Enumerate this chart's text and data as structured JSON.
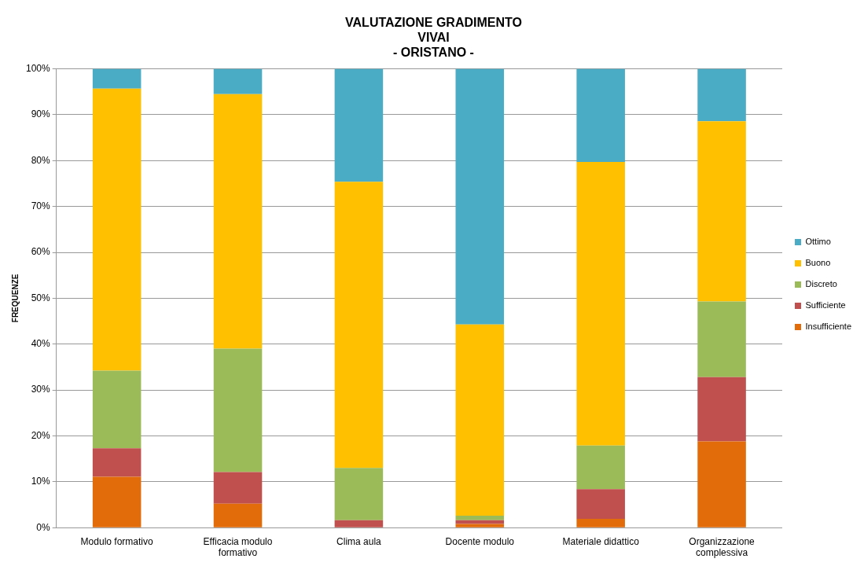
{
  "chart_data": {
    "type": "bar",
    "stacked": true,
    "title": "VALUTAZIONE GRADIMENTO\nVIVAI\n- ORISTANO -",
    "ylabel": "FREQUENZE",
    "categories": [
      "Modulo formativo",
      "Efficacia modulo formativo",
      "Clima aula",
      "Docente modulo",
      "Materiale didattico",
      "Organizzazione complessiva"
    ],
    "series": [
      {
        "name": "Insufficiente",
        "color": "#e36c0a",
        "values": [
          11.1,
          5.2,
          0,
          0.8,
          1.9,
          18.8
        ]
      },
      {
        "name": "Sufficiente",
        "color": "#c0504d",
        "values": [
          6.2,
          6.9,
          1.6,
          0.8,
          6.5,
          14.0
        ]
      },
      {
        "name": "Discreto",
        "color": "#9bbb59",
        "values": [
          16.9,
          26.9,
          11.4,
          1.0,
          9.5,
          16.5
        ]
      },
      {
        "name": "Buono",
        "color": "#ffc000",
        "values": [
          61.5,
          55.5,
          62.4,
          41.7,
          61.8,
          39.3
        ]
      },
      {
        "name": "Ottimo",
        "color": "#4bacc6",
        "values": [
          4.3,
          5.5,
          24.6,
          55.7,
          20.3,
          11.4
        ]
      }
    ],
    "ylim": [
      0,
      100
    ],
    "yticks": [
      {
        "value": 0,
        "label": "0%"
      },
      {
        "value": 10,
        "label": "10%"
      },
      {
        "value": 20,
        "label": "20%"
      },
      {
        "value": 30,
        "label": "30%"
      },
      {
        "value": 40,
        "label": "40%"
      },
      {
        "value": 50,
        "label": "50%"
      },
      {
        "value": 60,
        "label": "60%"
      },
      {
        "value": 70,
        "label": "70%"
      },
      {
        "value": 80,
        "label": "80%"
      },
      {
        "value": 90,
        "label": "90%"
      },
      {
        "value": 100,
        "label": "100%"
      }
    ],
    "grid": "y",
    "legend": "right"
  }
}
